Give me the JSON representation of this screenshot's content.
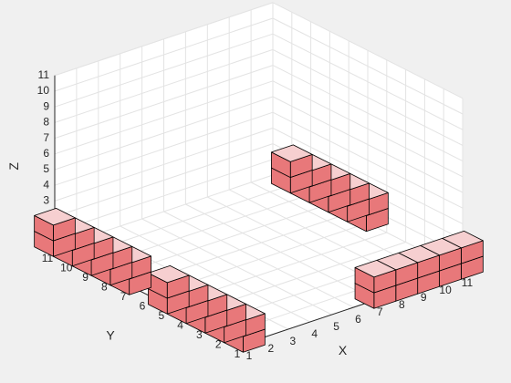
{
  "chart_data": {
    "type": "voxel",
    "title": "",
    "xlabel": "X",
    "ylabel": "Y",
    "zlabel": "Z",
    "xlim": [
      1,
      11
    ],
    "ylim": [
      1,
      11
    ],
    "zlim": [
      0,
      11
    ],
    "xticks": [
      1,
      2,
      3,
      4,
      5,
      6,
      7,
      8,
      9,
      10,
      11
    ],
    "yticks": [
      1,
      2,
      3,
      4,
      5,
      6,
      7,
      8,
      9,
      10,
      11
    ],
    "zticks": [
      1,
      2,
      3,
      4,
      5,
      6,
      7,
      8,
      9,
      10,
      11
    ],
    "grid": true,
    "face_color": "#e8787a",
    "top_face_color": "#f6cfd0",
    "edge_color": "#000000",
    "voxels": [
      {
        "x": 1,
        "y": 7,
        "z": 1
      },
      {
        "x": 1,
        "y": 7,
        "z": 2
      },
      {
        "x": 1,
        "y": 8,
        "z": 1
      },
      {
        "x": 1,
        "y": 8,
        "z": 2
      },
      {
        "x": 1,
        "y": 9,
        "z": 1
      },
      {
        "x": 1,
        "y": 9,
        "z": 2
      },
      {
        "x": 1,
        "y": 10,
        "z": 1
      },
      {
        "x": 1,
        "y": 10,
        "z": 2
      },
      {
        "x": 1,
        "y": 11,
        "z": 1
      },
      {
        "x": 1,
        "y": 11,
        "z": 2
      },
      {
        "x": 1,
        "y": 1,
        "z": 1
      },
      {
        "x": 1,
        "y": 1,
        "z": 2
      },
      {
        "x": 1,
        "y": 2,
        "z": 1
      },
      {
        "x": 1,
        "y": 2,
        "z": 2
      },
      {
        "x": 1,
        "y": 3,
        "z": 1
      },
      {
        "x": 1,
        "y": 3,
        "z": 2
      },
      {
        "x": 1,
        "y": 4,
        "z": 1
      },
      {
        "x": 1,
        "y": 4,
        "z": 2
      },
      {
        "x": 1,
        "y": 5,
        "z": 1
      },
      {
        "x": 1,
        "y": 5,
        "z": 2
      },
      {
        "x": 7,
        "y": 1,
        "z": 1
      },
      {
        "x": 7,
        "y": 1,
        "z": 2
      },
      {
        "x": 8,
        "y": 1,
        "z": 1
      },
      {
        "x": 8,
        "y": 1,
        "z": 2
      },
      {
        "x": 9,
        "y": 1,
        "z": 1
      },
      {
        "x": 9,
        "y": 1,
        "z": 2
      },
      {
        "x": 10,
        "y": 1,
        "z": 1
      },
      {
        "x": 10,
        "y": 1,
        "z": 2
      },
      {
        "x": 11,
        "y": 1,
        "z": 1
      },
      {
        "x": 11,
        "y": 1,
        "z": 2
      },
      {
        "x": 11,
        "y": 6,
        "z": 1
      },
      {
        "x": 11,
        "y": 6,
        "z": 2
      },
      {
        "x": 11,
        "y": 7,
        "z": 1
      },
      {
        "x": 11,
        "y": 7,
        "z": 2
      },
      {
        "x": 11,
        "y": 8,
        "z": 1
      },
      {
        "x": 11,
        "y": 8,
        "z": 2
      },
      {
        "x": 11,
        "y": 9,
        "z": 1
      },
      {
        "x": 11,
        "y": 9,
        "z": 2
      },
      {
        "x": 11,
        "y": 10,
        "z": 1
      },
      {
        "x": 11,
        "y": 10,
        "z": 2
      }
    ]
  }
}
